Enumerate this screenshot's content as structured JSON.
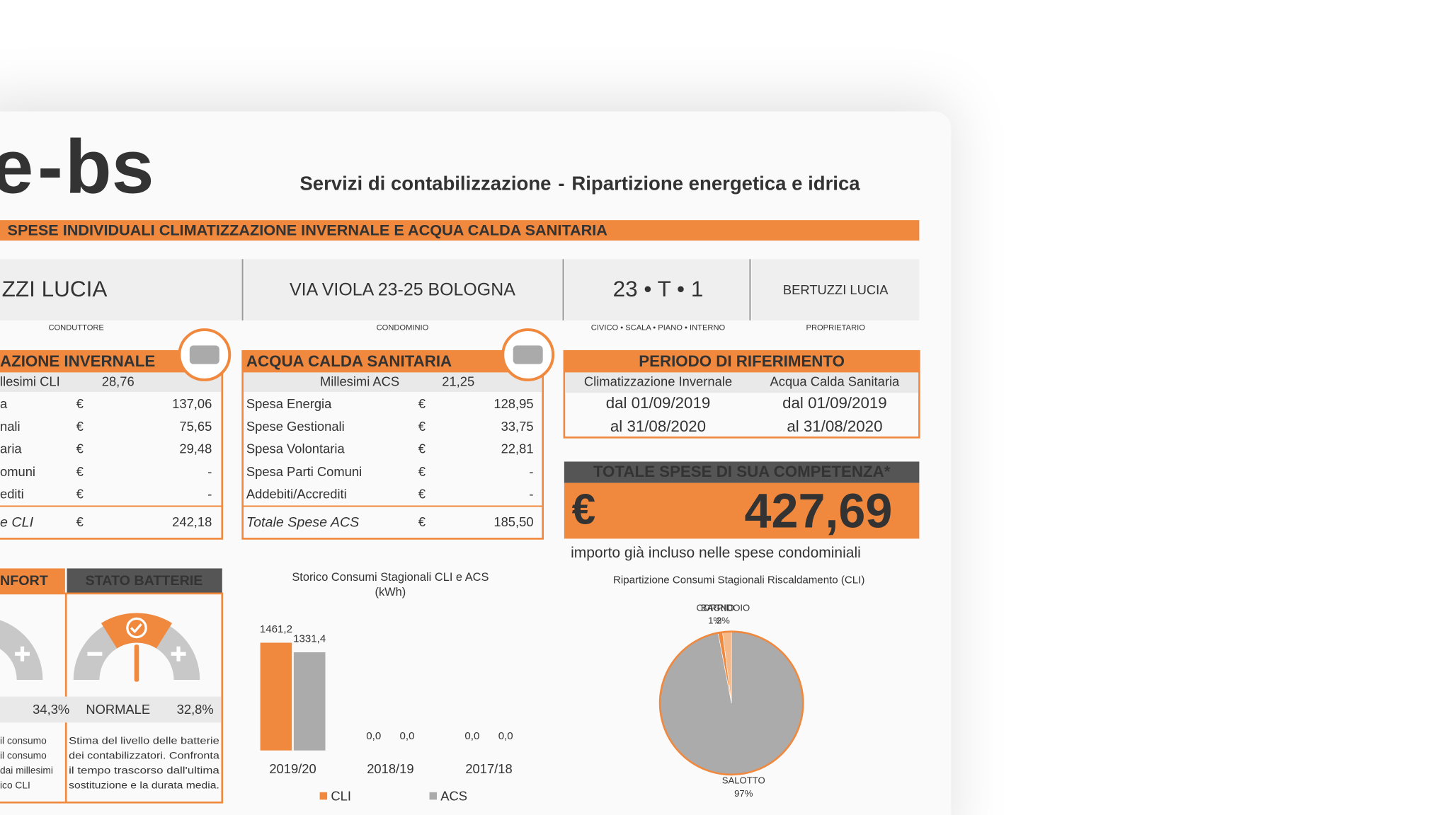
{
  "logo": {
    "parts": [
      "e",
      "-",
      "bs"
    ]
  },
  "header": {
    "parts": [
      "Servizi di contabilizzazione",
      "-",
      "Ripartizione energetica e idrica"
    ]
  },
  "banner": "SPESE INDIVIDUALI CLIMATIZZAZIONE INVERNALE E ACQUA CALDA SANITARIA",
  "info": [
    {
      "value": "ZZI LUCIA",
      "label": "CONDUTTORE"
    },
    {
      "value": "VIA VIOLA 23-25 BOLOGNA",
      "label": "CONDOMINIO"
    },
    {
      "value": "23 • T • 1",
      "label": "CIVICO • SCALA • PIANO • INTERNO"
    },
    {
      "value": "BERTUZZI LUCIA",
      "label": "PROPRIETARIO"
    }
  ],
  "cli_panel": {
    "title": "AZIONE INVERNALE",
    "millesimi_label": "llesimi CLI",
    "millesimi_value": "28,76",
    "rows": [
      [
        "a",
        "€",
        "137,06"
      ],
      [
        "nali",
        "€",
        "75,65"
      ],
      [
        "aria",
        "€",
        "29,48"
      ],
      [
        "omuni",
        "€",
        "-"
      ],
      [
        "editi",
        "€",
        "-"
      ]
    ],
    "total": [
      "e CLI",
      "€",
      "242,18"
    ]
  },
  "acs_panel": {
    "title": "ACQUA CALDA SANITARIA",
    "millesimi_label": "Millesimi ACS",
    "millesimi_value": "21,25",
    "rows": [
      [
        "Spesa Energia",
        "€",
        "128,95"
      ],
      [
        "Spese Gestionali",
        "€",
        "33,75"
      ],
      [
        "Spesa Volontaria",
        "€",
        "22,81"
      ],
      [
        "Spesa Parti Comuni",
        "€",
        "-"
      ],
      [
        "Addebiti/Accrediti",
        "€",
        "-"
      ]
    ],
    "total": [
      "Totale Spese ACS",
      "€",
      "185,50"
    ]
  },
  "period": {
    "title": "PERIODO DI RIFERIMENTO",
    "columns": [
      {
        "heading": "Climatizzazione Invernale",
        "from": "dal 01/09/2019",
        "to": "al 31/08/2020"
      },
      {
        "heading": "Acqua Calda Sanitaria",
        "from": "dal 01/09/2019",
        "to": "al 31/08/2020"
      }
    ]
  },
  "total": {
    "title": "TOTALE SPESE DI SUA COMPETENZA*",
    "currency": "€",
    "amount": "427,69",
    "note": "importo già incluso nelle spese condominiali"
  },
  "comfort": {
    "title": "NFORT",
    "value": "34,3%",
    "description": [
      "il consumo",
      "il consumo",
      "dai millesimi",
      "ico CLI"
    ]
  },
  "batteries": {
    "title": "STATO BATTERIE",
    "status": "NORMALE",
    "value": "32,8%",
    "description": [
      "Stima del livello delle batterie",
      "dei contabilizzatori. Confronta",
      "il tempo trascorso dall'ultima",
      "sostituzione e la durata media."
    ]
  },
  "bar_chart": {
    "type": "bar",
    "title": "Storico Consumi Stagionali CLI e ACS",
    "subtitle": "(kWh)",
    "categories": [
      "2019/20",
      "2018/19",
      "2017/18"
    ],
    "series": [
      {
        "name": "CLI",
        "color": "#f0883e",
        "values": [
          1461.2,
          0,
          0
        ],
        "value_labels": [
          "1461,2",
          "0,0",
          "0,0"
        ]
      },
      {
        "name": "ACS",
        "color": "#ababab",
        "values": [
          1331.4,
          0,
          0
        ],
        "value_labels": [
          "1331,4",
          "0,0",
          "0,0"
        ]
      }
    ]
  },
  "pie_chart": {
    "type": "pie",
    "title": "Ripartizione Consumi Stagionali Riscaldamento (CLI)",
    "labels": [
      "SALOTTO",
      "BAGNO",
      "CORRIDOIO"
    ],
    "values": [
      97,
      1,
      2
    ],
    "value_labels": [
      "97%",
      "1%",
      "2%"
    ],
    "colors": [
      "#ababab",
      "#f0883e",
      "#f6b98a"
    ]
  }
}
